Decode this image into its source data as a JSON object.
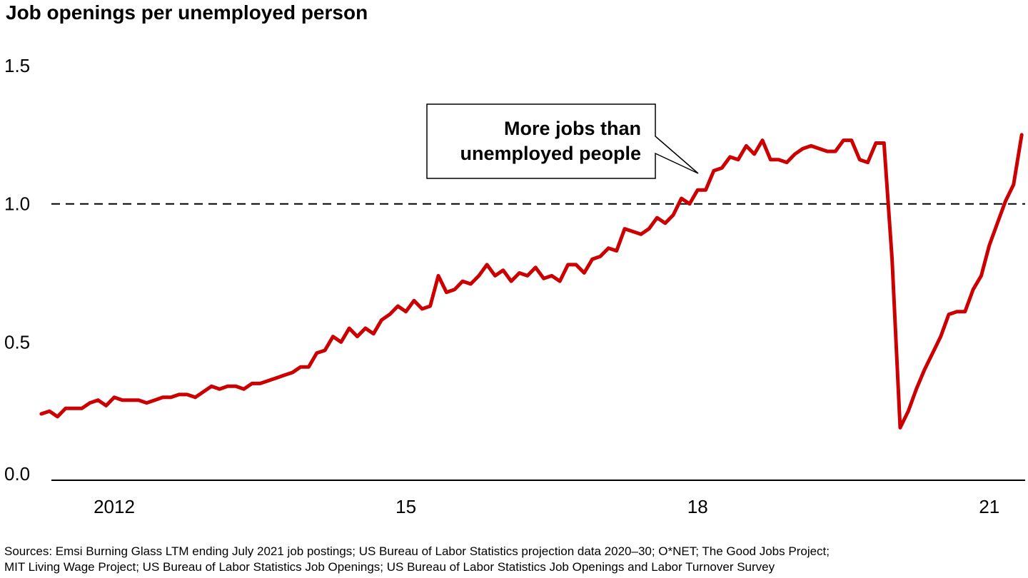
{
  "title": "Job openings per unemployed person",
  "sources": [
    "Sources: Emsi Burning Glass LTM ending July 2021 job postings; US Bureau of Labor Statistics projection data 2020–30; O*NET; The Good Jobs Project;",
    "MIT Living Wage Project; US Bureau of Labor Statistics Job Openings; US Bureau of Labor Statistics Job Openings and Labor Turnover Survey"
  ],
  "chart_data": {
    "type": "line",
    "title": "Job openings per unemployed person",
    "xlabel": "",
    "ylabel": "",
    "ylim": [
      0,
      1.5
    ],
    "y_ticks": [
      "0.0",
      "0.5",
      "1.0",
      "1.5"
    ],
    "x_ticks": [
      {
        "label": "2012",
        "year": 2012
      },
      {
        "label": "15",
        "year": 2015
      },
      {
        "label": "18",
        "year": 2018
      },
      {
        "label": "21",
        "year": 2021
      }
    ],
    "x_start": "2011-04",
    "grid": false,
    "reference_line": {
      "y": 1.0,
      "style": "dashed"
    },
    "annotation": {
      "lines": [
        "More jobs than",
        "unemployed people"
      ],
      "points_to": {
        "year": 2018.17,
        "y": 1.01
      }
    },
    "series": [
      {
        "color": "#cc0000",
        "values": [
          0.24,
          0.25,
          0.23,
          0.26,
          0.26,
          0.26,
          0.28,
          0.29,
          0.27,
          0.3,
          0.29,
          0.29,
          0.29,
          0.28,
          0.29,
          0.3,
          0.3,
          0.31,
          0.31,
          0.3,
          0.32,
          0.34,
          0.33,
          0.34,
          0.34,
          0.33,
          0.35,
          0.35,
          0.36,
          0.37,
          0.38,
          0.39,
          0.41,
          0.41,
          0.46,
          0.47,
          0.52,
          0.5,
          0.55,
          0.52,
          0.55,
          0.53,
          0.58,
          0.6,
          0.63,
          0.61,
          0.65,
          0.62,
          0.63,
          0.74,
          0.68,
          0.69,
          0.72,
          0.71,
          0.74,
          0.78,
          0.74,
          0.76,
          0.72,
          0.75,
          0.74,
          0.77,
          0.73,
          0.74,
          0.72,
          0.78,
          0.78,
          0.75,
          0.8,
          0.81,
          0.84,
          0.83,
          0.91,
          0.9,
          0.89,
          0.91,
          0.95,
          0.93,
          0.96,
          1.02,
          1.0,
          1.05,
          1.05,
          1.12,
          1.13,
          1.17,
          1.16,
          1.21,
          1.18,
          1.23,
          1.16,
          1.16,
          1.15,
          1.18,
          1.2,
          1.21,
          1.2,
          1.19,
          1.19,
          1.23,
          1.23,
          1.16,
          1.15,
          1.22,
          1.22,
          0.8,
          0.19,
          0.25,
          0.33,
          0.4,
          0.46,
          0.52,
          0.6,
          0.61,
          0.61,
          0.69,
          0.74,
          0.85,
          0.93,
          1.01,
          1.07,
          1.25
        ]
      }
    ]
  }
}
